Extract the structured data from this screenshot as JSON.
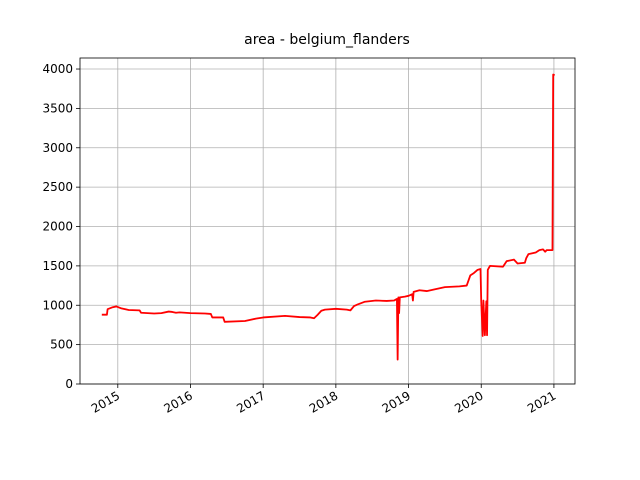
{
  "chart_data": {
    "type": "line",
    "title": "area - belgium_flanders",
    "x": [
      2014.78,
      2014.85,
      2014.86,
      2014.93,
      2014.98,
      2015.05,
      2015.15,
      2015.3,
      2015.32,
      2015.5,
      2015.6,
      2015.7,
      2015.75,
      2015.8,
      2015.85,
      2016.0,
      2016.2,
      2016.28,
      2016.3,
      2016.45,
      2016.47,
      2016.75,
      2016.9,
      2017.0,
      2017.3,
      2017.5,
      2017.65,
      2017.7,
      2017.75,
      2017.8,
      2017.85,
      2018.0,
      2018.15,
      2018.2,
      2018.25,
      2018.3,
      2018.4,
      2018.55,
      2018.7,
      2018.8,
      2018.84,
      2018.85,
      2018.86,
      2018.87,
      2018.88,
      2018.95,
      2019.0,
      2019.05,
      2019.06,
      2019.07,
      2019.15,
      2019.25,
      2019.35,
      2019.5,
      2019.7,
      2019.8,
      2019.85,
      2019.9,
      2019.95,
      2019.99,
      2020.0,
      2020.02,
      2020.03,
      2020.05,
      2020.07,
      2020.08,
      2020.09,
      2020.12,
      2020.3,
      2020.35,
      2020.45,
      2020.5,
      2020.6,
      2020.62,
      2020.65,
      2020.75,
      2020.8,
      2020.85,
      2020.88,
      2020.9,
      2020.98,
      2020.99,
      2021.01
    ],
    "values": [
      880,
      880,
      950,
      975,
      985,
      960,
      940,
      935,
      905,
      895,
      900,
      920,
      915,
      905,
      910,
      900,
      895,
      890,
      845,
      845,
      790,
      800,
      830,
      845,
      865,
      850,
      845,
      835,
      880,
      930,
      945,
      955,
      945,
      935,
      990,
      1010,
      1045,
      1060,
      1055,
      1060,
      1080,
      310,
      1100,
      900,
      1100,
      1110,
      1120,
      1140,
      1060,
      1170,
      1190,
      1180,
      1200,
      1230,
      1240,
      1250,
      1380,
      1410,
      1450,
      1460,
      1050,
      610,
      1060,
      620,
      1050,
      620,
      1450,
      1500,
      1490,
      1560,
      1580,
      1530,
      1540,
      1600,
      1650,
      1670,
      1700,
      1710,
      1680,
      1700,
      1700,
      3930,
      3920
    ],
    "color": "#ff0000",
    "xlim": [
      2014.48,
      2021.29
    ],
    "xticks": [
      2015,
      2016,
      2017,
      2018,
      2019,
      2020,
      2021
    ],
    "ylim": [
      0,
      4140
    ],
    "yticks": [
      0,
      500,
      1000,
      1500,
      2000,
      2500,
      3000,
      3500,
      4000
    ],
    "grid": true
  }
}
